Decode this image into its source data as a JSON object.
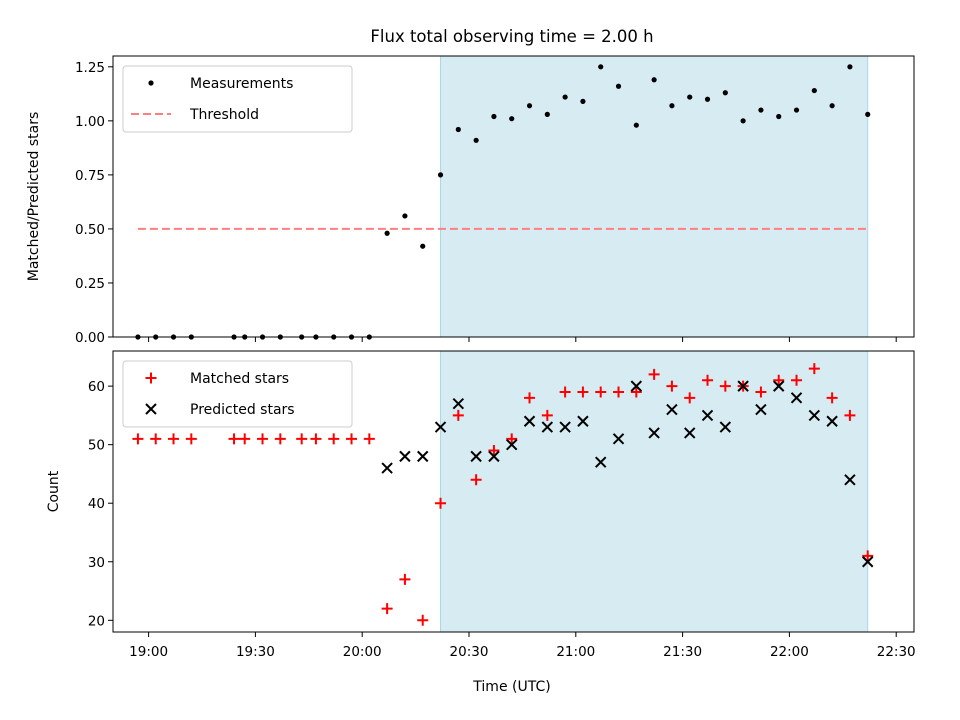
{
  "title": "Flux total observing time = 2.00 h",
  "xlabel": "Time (UTC)",
  "x_ticks": [
    "19:00",
    "19:30",
    "20:00",
    "20:30",
    "21:00",
    "21:30",
    "22:00",
    "22:30"
  ],
  "colors": {
    "shade": "#add8e6",
    "measurement": "#000000",
    "threshold": "#ff7f7f",
    "matched": "#ff0000",
    "predicted": "#000000"
  },
  "chart_data": [
    {
      "type": "scatter",
      "ylabel": "Matched/Predicted stars",
      "ylim": [
        0,
        1.3
      ],
      "y_ticks": [
        "0.00",
        "0.25",
        "0.50",
        "0.75",
        "1.00",
        "1.25"
      ],
      "x_range": [
        "18:50",
        "22:35"
      ],
      "shaded_span": [
        "20:22",
        "22:22"
      ],
      "legend": {
        "placement": "top-left",
        "entries": [
          "Measurements",
          "Threshold"
        ]
      },
      "threshold": {
        "name": "Threshold",
        "value": 0.5,
        "x_start": "18:57",
        "x_end": "22:22"
      },
      "series": [
        {
          "name": "Measurements",
          "x": [
            "18:57",
            "19:02",
            "19:07",
            "19:12",
            "19:24",
            "19:27",
            "19:32",
            "19:37",
            "19:43",
            "19:47",
            "19:52",
            "19:57",
            "20:02",
            "20:07",
            "20:12",
            "20:17",
            "20:22",
            "20:27",
            "20:32",
            "20:37",
            "20:42",
            "20:47",
            "20:52",
            "20:57",
            "21:02",
            "21:07",
            "21:12",
            "21:17",
            "21:22",
            "21:27",
            "21:32",
            "21:37",
            "21:42",
            "21:47",
            "21:52",
            "21:57",
            "22:02",
            "22:07",
            "22:12",
            "22:17",
            "22:22"
          ],
          "y": [
            0,
            0,
            0,
            0,
            0,
            0,
            0,
            0,
            0,
            0,
            0,
            0,
            0,
            0.48,
            0.56,
            0.42,
            0.75,
            0.96,
            0.91,
            1.02,
            1.01,
            1.07,
            1.03,
            1.11,
            1.09,
            1.25,
            1.16,
            0.98,
            1.19,
            1.07,
            1.11,
            1.1,
            1.13,
            1.0,
            1.05,
            1.02,
            1.05,
            1.14,
            1.07,
            1.25,
            1.03
          ]
        }
      ]
    },
    {
      "type": "scatter",
      "ylabel": "Count",
      "ylim": [
        18,
        66
      ],
      "y_ticks": [
        "20",
        "30",
        "40",
        "50",
        "60"
      ],
      "x_range": [
        "18:50",
        "22:35"
      ],
      "shaded_span": [
        "20:22",
        "22:22"
      ],
      "legend": {
        "placement": "top-left",
        "entries": [
          "Matched stars",
          "Predicted stars"
        ]
      },
      "series": [
        {
          "name": "Matched stars",
          "marker": "+",
          "x": [
            "18:57",
            "19:02",
            "19:07",
            "19:12",
            "19:24",
            "19:27",
            "19:32",
            "19:37",
            "19:43",
            "19:47",
            "19:52",
            "19:57",
            "20:02",
            "20:07",
            "20:12",
            "20:17",
            "20:22",
            "20:27",
            "20:32",
            "20:37",
            "20:42",
            "20:47",
            "20:52",
            "20:57",
            "21:02",
            "21:07",
            "21:12",
            "21:17",
            "21:22",
            "21:27",
            "21:32",
            "21:37",
            "21:42",
            "21:47",
            "21:52",
            "21:57",
            "22:02",
            "22:07",
            "22:12",
            "22:17",
            "22:22"
          ],
          "y": [
            51,
            51,
            51,
            51,
            51,
            51,
            51,
            51,
            51,
            51,
            51,
            51,
            51,
            22,
            27,
            20,
            40,
            55,
            44,
            49,
            51,
            58,
            55,
            59,
            59,
            59,
            59,
            59,
            62,
            60,
            58,
            61,
            60,
            60,
            59,
            61,
            61,
            63,
            58,
            55,
            31
          ]
        },
        {
          "name": "Predicted stars",
          "marker": "x",
          "x": [
            "20:07",
            "20:12",
            "20:17",
            "20:22",
            "20:27",
            "20:32",
            "20:37",
            "20:42",
            "20:47",
            "20:52",
            "20:57",
            "21:02",
            "21:07",
            "21:12",
            "21:17",
            "21:22",
            "21:27",
            "21:32",
            "21:37",
            "21:42",
            "21:47",
            "21:52",
            "21:57",
            "22:02",
            "22:07",
            "22:12",
            "22:17",
            "22:22"
          ],
          "y": [
            46,
            48,
            48,
            53,
            57,
            48,
            48,
            50,
            54,
            53,
            53,
            54,
            47,
            51,
            60,
            52,
            56,
            52,
            55,
            53,
            60,
            56,
            60,
            58,
            55,
            54,
            44,
            30
          ]
        }
      ]
    }
  ]
}
